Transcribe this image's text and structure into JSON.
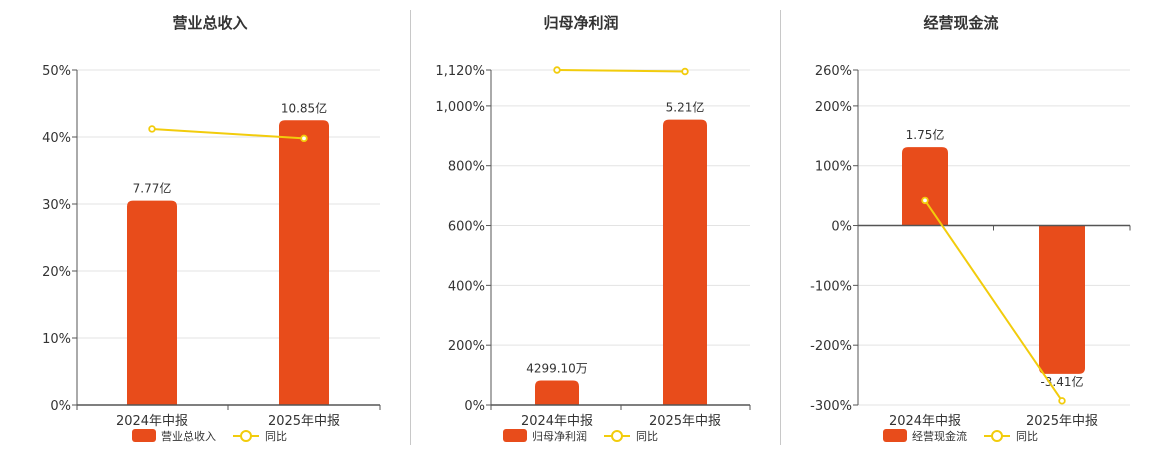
{
  "colors": {
    "bar": "#E84C1B",
    "line": "#F2CC0C",
    "grid": "#e3e3e3",
    "axis": "#555555",
    "text": "#333333"
  },
  "chart_data": [
    {
      "type": "bar",
      "title": "营业总收入",
      "categories": [
        "2024年中报",
        "2025年中报"
      ],
      "y_ticks": [
        "0%",
        "10%",
        "20%",
        "30%",
        "40%",
        "50%"
      ],
      "ylim": [
        0,
        50
      ],
      "bar_values": [
        30.5,
        42.5
      ],
      "bar_labels": [
        "7.77亿",
        "10.85亿"
      ],
      "line_values": [
        41.2,
        39.8
      ],
      "legend": {
        "bar_name": "营业总收入",
        "line_name": "同比",
        "placement": "bottom"
      },
      "grid": true
    },
    {
      "type": "bar",
      "title": "归母净利润",
      "categories": [
        "2024年中报",
        "2025年中报"
      ],
      "y_ticks": [
        "0%",
        "200%",
        "400%",
        "600%",
        "800%",
        "1,000%",
        "1,120%"
      ],
      "y_tick_values": [
        0,
        200,
        400,
        600,
        800,
        1000,
        1120
      ],
      "ylim": [
        0,
        1120
      ],
      "bar_values": [
        82,
        954
      ],
      "bar_labels": [
        "4299.10万",
        "5.21亿"
      ],
      "line_values": [
        1120,
        1115
      ],
      "legend": {
        "bar_name": "归母净利润",
        "line_name": "同比",
        "placement": "bottom"
      },
      "grid": true
    },
    {
      "type": "bar",
      "title": "经营现金流",
      "categories": [
        "2024年中报",
        "2025年中报"
      ],
      "y_ticks": [
        "-300%",
        "-200%",
        "-100%",
        "0%",
        "100%",
        "200%",
        "260%"
      ],
      "y_tick_values": [
        -300,
        -200,
        -100,
        0,
        100,
        200,
        260
      ],
      "ylim": [
        -300,
        260
      ],
      "bar_values": [
        131,
        -248
      ],
      "bar_labels": [
        "1.75亿",
        "-3.41亿"
      ],
      "line_values": [
        42,
        -293
      ],
      "legend": {
        "bar_name": "经营现金流",
        "line_name": "同比",
        "placement": "bottom"
      },
      "grid": true
    }
  ]
}
